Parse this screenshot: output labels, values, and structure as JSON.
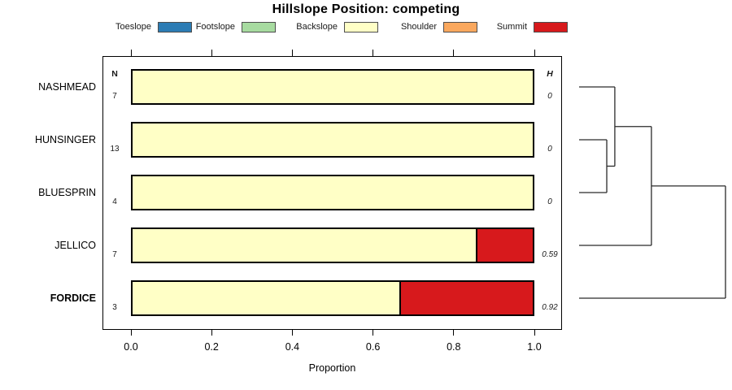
{
  "title": "Hillslope Position: competing",
  "columns": {
    "n_header": "N",
    "h_header": "H"
  },
  "legend": [
    {
      "label": "Toeslope",
      "color": "#2C7CB4"
    },
    {
      "label": "Footslope",
      "color": "#A7DBA0"
    },
    {
      "label": "Backslope",
      "color": "#FFFFC6"
    },
    {
      "label": "Shoulder",
      "color": "#FAA85E"
    },
    {
      "label": "Summit",
      "color": "#D7191C"
    }
  ],
  "x_ticks": [
    "0.0",
    "0.2",
    "0.4",
    "0.6",
    "0.8",
    "1.0"
  ],
  "chart_data": {
    "type": "bar",
    "orientation": "horizontal",
    "stacked": true,
    "title": "Hillslope Position: competing",
    "xlabel": "Proportion",
    "xlim": [
      0,
      1
    ],
    "grid": false,
    "legend_position": "top",
    "categories": [
      "Toeslope",
      "Footslope",
      "Backslope",
      "Shoulder",
      "Summit"
    ],
    "rows": [
      {
        "label": "NASHMEAD",
        "bold": false,
        "n": "7",
        "h": "0",
        "segments": [
          {
            "name": "Backslope",
            "value": 1.0
          }
        ]
      },
      {
        "label": "HUNSINGER",
        "bold": false,
        "n": "13",
        "h": "0",
        "segments": [
          {
            "name": "Backslope",
            "value": 1.0
          }
        ]
      },
      {
        "label": "BLUESPRIN",
        "bold": false,
        "n": "4",
        "h": "0",
        "segments": [
          {
            "name": "Backslope",
            "value": 1.0
          }
        ]
      },
      {
        "label": "JELLICO",
        "bold": false,
        "n": "7",
        "h": "0.59",
        "segments": [
          {
            "name": "Backslope",
            "value": 0.857
          },
          {
            "name": "Summit",
            "value": 0.143
          }
        ]
      },
      {
        "label": "FORDICE",
        "bold": true,
        "n": "3",
        "h": "0.92",
        "segments": [
          {
            "name": "Backslope",
            "value": 0.667
          },
          {
            "name": "Summit",
            "value": 0.333
          }
        ]
      }
    ],
    "dendrogram": {
      "leaf_order": [
        "NASHMEAD",
        "HUNSINGER",
        "BLUESPRIN",
        "JELLICO",
        "FORDICE"
      ],
      "tree": {
        "height": 1.0,
        "children": [
          {
            "height": 0.494,
            "children": [
              {
                "height": 0.244,
                "children": [
                  {
                    "leaf": "NASHMEAD"
                  },
                  {
                    "height": 0.189,
                    "children": [
                      {
                        "leaf": "HUNSINGER"
                      },
                      {
                        "leaf": "BLUESPRIN"
                      }
                    ]
                  }
                ]
              },
              {
                "leaf": "JELLICO"
              }
            ]
          },
          {
            "leaf": "FORDICE"
          }
        ]
      }
    }
  }
}
